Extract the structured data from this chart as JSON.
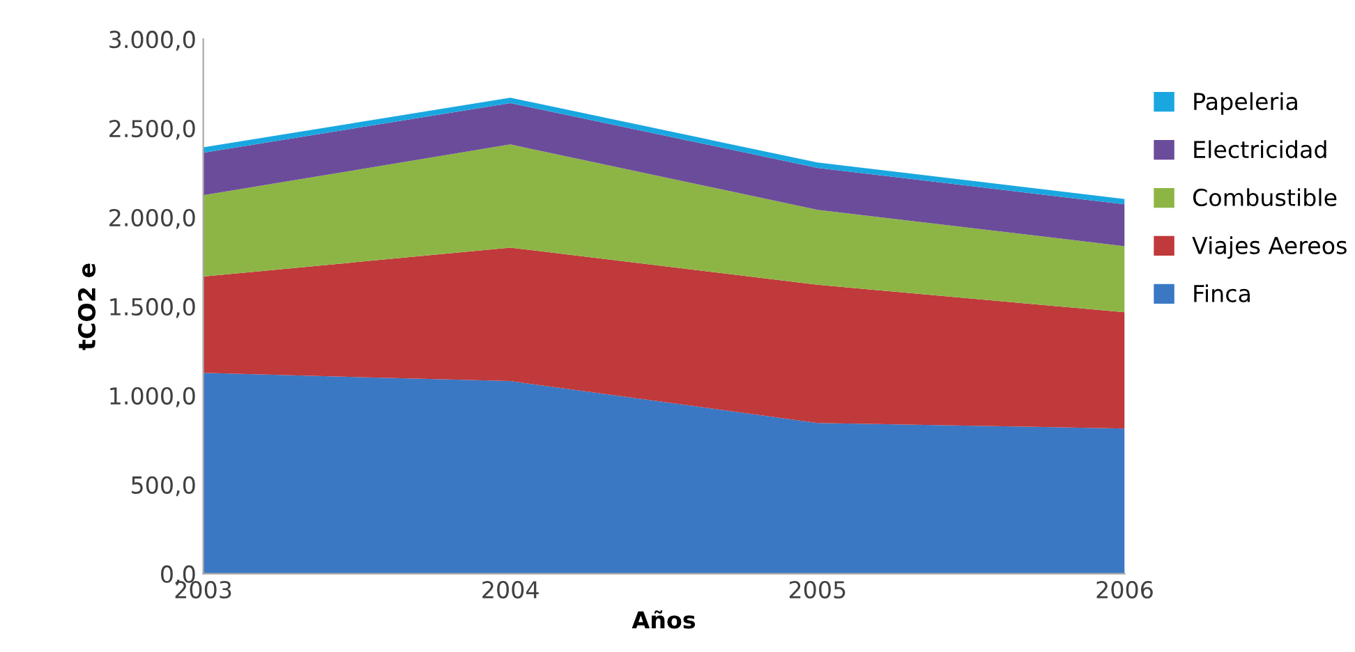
{
  "chart_data": {
    "type": "area",
    "stacked": true,
    "xlabel": "Años",
    "ylabel": "tCO2 e",
    "x": [
      2003,
      2004,
      2005,
      2006
    ],
    "xlim": [
      2003,
      2006
    ],
    "xticks": [
      2003,
      2004,
      2005,
      2006
    ],
    "ylim": [
      0,
      3000
    ],
    "yticks": [
      {
        "value": 0,
        "label": "0,0"
      },
      {
        "value": 500,
        "label": "500,0"
      },
      {
        "value": 1000,
        "label": "1.000,0"
      },
      {
        "value": 1500,
        "label": "1.500,0"
      },
      {
        "value": 2000,
        "label": "2.000,0"
      },
      {
        "value": 2500,
        "label": "2.500,0"
      },
      {
        "value": 3000,
        "label": "3.000,0"
      }
    ],
    "legend": "right",
    "grid": false,
    "series": [
      {
        "name": "Finca",
        "color": "#3a78c4",
        "values": [
          1127,
          1081,
          846,
          815
        ]
      },
      {
        "name": "Viajes Aereos",
        "color": "#c0393b",
        "values": [
          541,
          749,
          776,
          652
        ]
      },
      {
        "name": "Combustible",
        "color": "#8db545",
        "values": [
          456,
          579,
          420,
          371
        ]
      },
      {
        "name": "Electricidad",
        "color": "#6b4c9a",
        "values": [
          239,
          232,
          236,
          235
        ]
      },
      {
        "name": "Papeleria",
        "color": "#1aa7e0",
        "values": [
          30,
          30,
          30,
          30
        ]
      }
    ]
  }
}
